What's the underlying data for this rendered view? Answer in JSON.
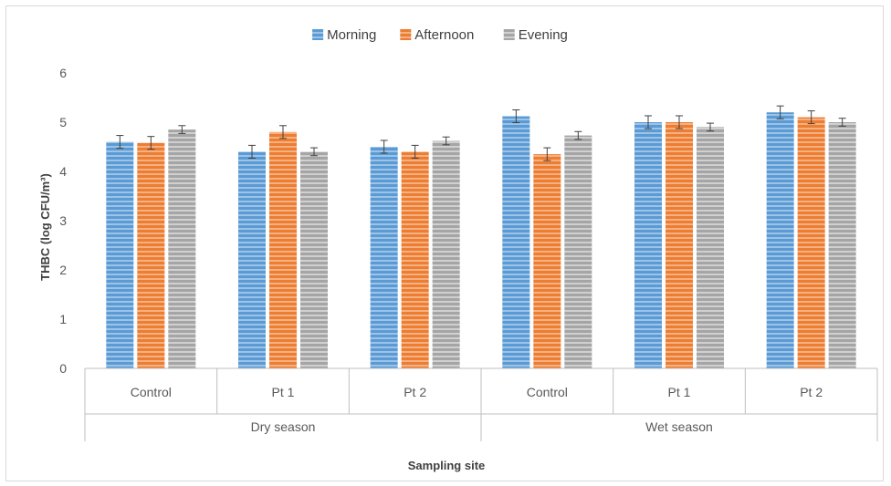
{
  "chart_data": {
    "type": "bar",
    "title": "",
    "xlabel": "Sampling site",
    "ylabel": "THBC  (log CFU/m³)",
    "ylim": [
      0,
      6
    ],
    "yticks": [
      "0",
      "1",
      "2",
      "3",
      "4",
      "5",
      "6"
    ],
    "groups": [
      {
        "label": "Dry season",
        "categories": [
          "Control",
          "Pt 1",
          "Pt 2"
        ]
      },
      {
        "label": "Wet season",
        "categories": [
          "Control",
          "Pt 1",
          "Pt 2"
        ]
      }
    ],
    "series": [
      {
        "name": "Morning",
        "color": "#5b9bd5",
        "values": [
          4.6,
          4.4,
          4.5,
          5.12,
          5.0,
          5.2
        ],
        "errors": [
          0.13,
          0.13,
          0.13,
          0.13,
          0.13,
          0.13
        ]
      },
      {
        "name": "Afternoon",
        "color": "#ed7d31",
        "values": [
          4.58,
          4.8,
          4.4,
          4.35,
          5.0,
          5.1
        ],
        "errors": [
          0.13,
          0.13,
          0.13,
          0.13,
          0.13,
          0.13
        ]
      },
      {
        "name": "Evening",
        "color": "#a5a5a5",
        "values": [
          4.85,
          4.4,
          4.62,
          4.73,
          4.9,
          5.0
        ],
        "errors": [
          0.08,
          0.08,
          0.08,
          0.08,
          0.08,
          0.08
        ]
      }
    ],
    "legend_position": "top-center",
    "grid": false
  }
}
